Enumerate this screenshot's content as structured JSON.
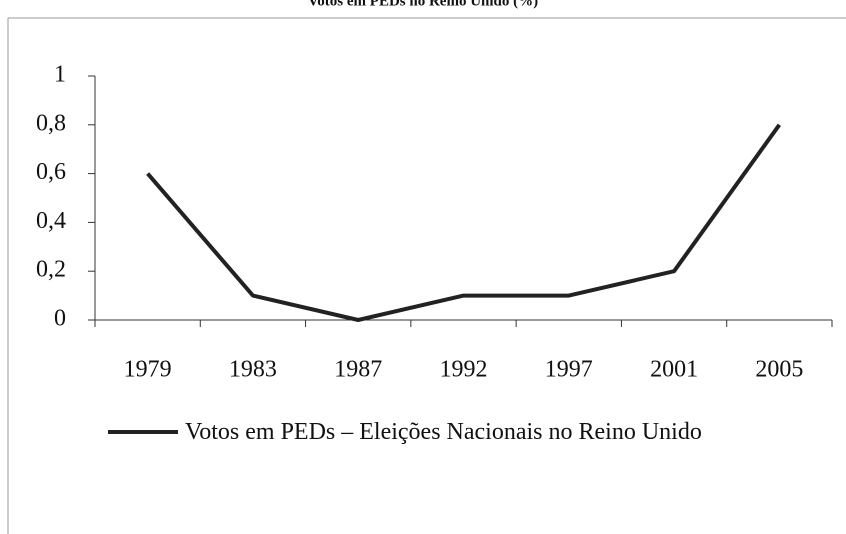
{
  "chart_data": {
    "type": "line",
    "title": "Votos em PEDs no Reino Unido (%)",
    "categories": [
      "1979",
      "1983",
      "1987",
      "1992",
      "1997",
      "2001",
      "2005"
    ],
    "series": [
      {
        "name": "Votos em PEDs – Eleições Nacionais no Reino Unido",
        "color": "#222222",
        "values": [
          0.6,
          0.1,
          0,
          0.1,
          0.1,
          0.2,
          0.8
        ]
      }
    ],
    "ylim": [
      0,
      1
    ],
    "yticks": [
      0,
      {
        "value": 0.2,
        "label": "0,2"
      },
      {
        "value": 0.4,
        "label": "0,4"
      },
      {
        "value": 0.6,
        "label": "0,6"
      },
      {
        "value": 0.8,
        "label": "0,8"
      },
      1
    ],
    "grid": false,
    "legend": "bottom"
  }
}
